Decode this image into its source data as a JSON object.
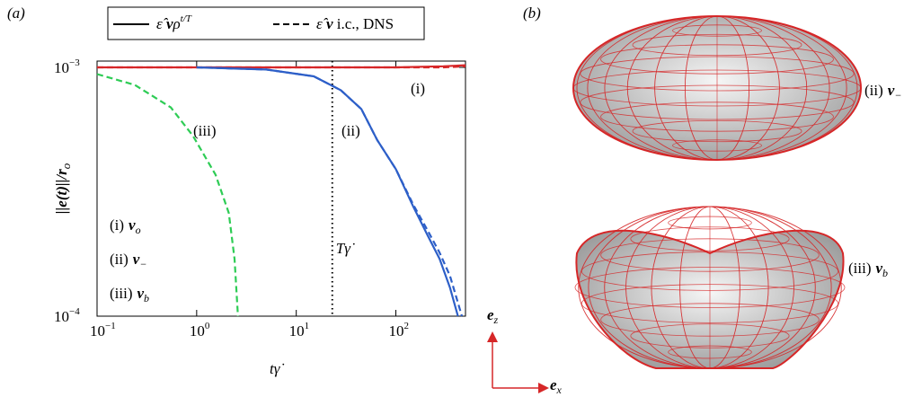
{
  "chart_data": {
    "type": "line",
    "panel": "(a)",
    "xlabel": {
      "main": "t",
      "dot": "γ̇"
    },
    "ylabel": {
      "main": "||e(t)||/r",
      "sub": "o"
    },
    "xscale": "log",
    "yscale": "log",
    "xlim": [
      0.1,
      500
    ],
    "ylim": [
      0.0001,
      0.00106
    ],
    "xticks": [
      {
        "value": 0.1,
        "label": "10",
        "sup": "−1"
      },
      {
        "value": 1,
        "label": "10",
        "sup": "0"
      },
      {
        "value": 10,
        "label": "10",
        "sup": "1"
      },
      {
        "value": 100,
        "label": "10",
        "sup": "2"
      }
    ],
    "yticks": [
      {
        "value": 0.0001,
        "label": "10",
        "sup": "−4"
      },
      {
        "value": 0.001,
        "label": "10",
        "sup": "−3"
      }
    ],
    "legend": [
      {
        "symbol": "ε̂ ",
        "vector": "v",
        "rest": "ρ",
        "sup": "t/T",
        "dashed": false
      },
      {
        "symbol": "ε̂ ",
        "vector": "v",
        "rest": " i.c., DNS",
        "dashed": true
      }
    ],
    "vline": {
      "x": 23,
      "label": "Tγ̇"
    },
    "curves": [
      {
        "name": "(i)",
        "vector": "v",
        "sub": "o",
        "color": "#d62728",
        "solid": {
          "x": [
            0.1,
            1,
            10,
            100,
            300,
            500
          ],
          "values": [
            0.001,
            0.001,
            0.001,
            0.001,
            0.00101,
            0.00102
          ]
        },
        "dashed": {
          "x": [
            0.1,
            1,
            10,
            100,
            300,
            500
          ],
          "values": [
            0.001,
            0.001,
            0.001,
            0.001,
            0.001,
            0.00101
          ]
        }
      },
      {
        "name": "(ii)",
        "vector": "v",
        "sub": "−",
        "color": "#2d5fc8",
        "solid": {
          "x": [
            1,
            5,
            15,
            28,
            45,
            65,
            100,
            150,
            210,
            275,
            350,
            420
          ],
          "values": [
            0.001,
            0.00098,
            0.00092,
            0.00081,
            0.00068,
            0.00051,
            0.00039,
            0.000275,
            0.00021,
            0.00017,
            0.00013,
            0.0001
          ]
        },
        "dashed": {
          "x": [
            1,
            5,
            15,
            28,
            45,
            65,
            100,
            150,
            210,
            275,
            350,
            460
          ],
          "values": [
            0.001,
            0.00098,
            0.00092,
            0.00081,
            0.00068,
            0.00051,
            0.00039,
            0.00028,
            0.00022,
            0.00018,
            0.000145,
            0.0001
          ]
        }
      },
      {
        "name": "(iii)",
        "vector": "v",
        "sub": "b",
        "color": "#2ecc55",
        "dashed": {
          "x": [
            0.1,
            0.24,
            0.55,
            0.92,
            1.55,
            2.1,
            2.4,
            2.6
          ],
          "values": [
            0.00094,
            0.00085,
            0.00069,
            0.00053,
            0.00037,
            0.00026,
            0.00017,
            0.0001
          ]
        }
      }
    ]
  },
  "panel_b": {
    "label": "(b)",
    "shapes": [
      {
        "name": "(ii)",
        "vector": "v",
        "sub": "−"
      },
      {
        "name": "(iii)",
        "vector": "v",
        "sub": "b"
      }
    ],
    "axes": {
      "z": {
        "main": "e",
        "sub": "z"
      },
      "x": {
        "main": "e",
        "sub": "x"
      }
    }
  }
}
